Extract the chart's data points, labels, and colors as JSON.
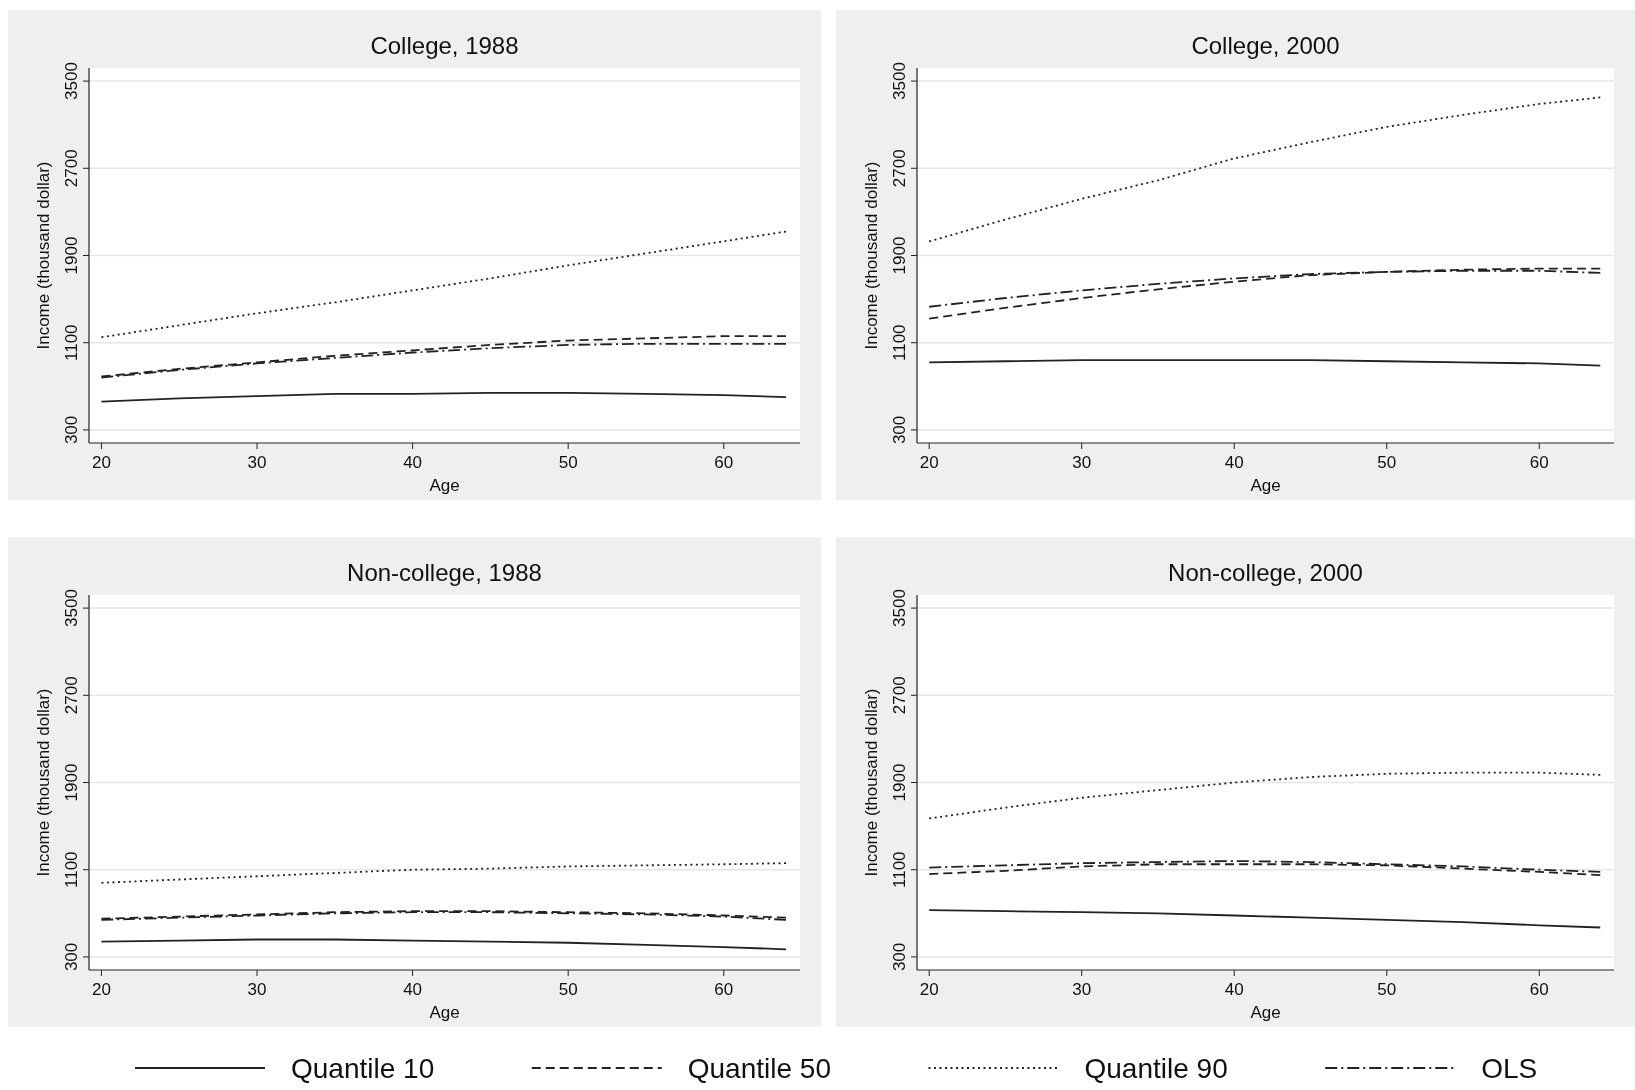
{
  "chart_data": [
    {
      "type": "line",
      "title": "College, 1988",
      "xlabel": "Age",
      "ylabel": "Income (thousand dollar)",
      "x": [
        20,
        25,
        30,
        35,
        40,
        45,
        50,
        55,
        60,
        64
      ],
      "xlim": [
        19.2,
        64.9
      ],
      "ylim": [
        180,
        3620
      ],
      "xticks": [
        20,
        30,
        40,
        50,
        60
      ],
      "yticks": [
        300,
        1100,
        1900,
        2700,
        3500
      ],
      "grid": "y",
      "legend": "bottom",
      "series": [
        {
          "name": "Quantile 10",
          "color": "#222222",
          "line_style": "solid",
          "values": [
            560,
            590,
            610,
            630,
            630,
            640,
            640,
            630,
            620,
            600
          ]
        },
        {
          "name": "Quantile 50",
          "color": "#222222",
          "line_style": "dashed",
          "values": [
            790,
            860,
            920,
            980,
            1030,
            1080,
            1120,
            1140,
            1160,
            1160
          ]
        },
        {
          "name": "Quantile 90",
          "color": "#222222",
          "line_style": "dotted",
          "values": [
            1150,
            1260,
            1370,
            1470,
            1580,
            1690,
            1810,
            1920,
            2030,
            2120
          ]
        },
        {
          "name": "OLS",
          "color": "#222222",
          "line_style": "dashdot",
          "values": [
            780,
            850,
            910,
            960,
            1010,
            1050,
            1080,
            1090,
            1090,
            1090
          ]
        }
      ]
    },
    {
      "type": "line",
      "title": "College, 2000",
      "xlabel": "Age",
      "ylabel": "Income (thousand dollar)",
      "x": [
        20,
        25,
        30,
        35,
        40,
        45,
        50,
        55,
        60,
        64
      ],
      "xlim": [
        19.2,
        64.9
      ],
      "ylim": [
        180,
        3620
      ],
      "xticks": [
        20,
        30,
        40,
        50,
        60
      ],
      "yticks": [
        300,
        1100,
        1900,
        2700,
        3500
      ],
      "grid": "y",
      "series": [
        {
          "color": "#222222",
          "line_style": "solid",
          "values": [
            920,
            930,
            940,
            940,
            940,
            940,
            930,
            920,
            910,
            890
          ]
        },
        {
          "color": "#222222",
          "line_style": "dashed",
          "values": [
            1320,
            1420,
            1510,
            1590,
            1660,
            1720,
            1750,
            1770,
            1780,
            1780
          ]
        },
        {
          "color": "#222222",
          "line_style": "dotted",
          "values": [
            2030,
            2230,
            2420,
            2590,
            2790,
            2940,
            3080,
            3190,
            3290,
            3350
          ]
        },
        {
          "color": "#222222",
          "line_style": "dashdot",
          "values": [
            1430,
            1510,
            1580,
            1640,
            1690,
            1730,
            1750,
            1760,
            1760,
            1740
          ]
        }
      ]
    },
    {
      "type": "line",
      "title": "Non-college, 1988",
      "xlabel": "Age",
      "ylabel": "Income (thousand dollar)",
      "x": [
        20,
        25,
        30,
        35,
        40,
        45,
        50,
        55,
        60,
        64
      ],
      "xlim": [
        19.2,
        64.9
      ],
      "ylim": [
        180,
        3620
      ],
      "xticks": [
        20,
        30,
        40,
        50,
        60
      ],
      "yticks": [
        300,
        1100,
        1900,
        2700,
        3500
      ],
      "grid": "y",
      "series": [
        {
          "color": "#222222",
          "line_style": "solid",
          "values": [
            440,
            450,
            460,
            460,
            450,
            440,
            430,
            410,
            390,
            370
          ]
        },
        {
          "color": "#222222",
          "line_style": "dashed",
          "values": [
            650,
            670,
            690,
            710,
            720,
            720,
            710,
            700,
            680,
            660
          ]
        },
        {
          "color": "#222222",
          "line_style": "dotted",
          "values": [
            980,
            1010,
            1040,
            1070,
            1100,
            1110,
            1130,
            1140,
            1150,
            1160
          ]
        },
        {
          "color": "#222222",
          "line_style": "dashdot",
          "values": [
            640,
            660,
            680,
            700,
            710,
            710,
            700,
            690,
            670,
            640
          ]
        }
      ]
    },
    {
      "type": "line",
      "title": "Non-college, 2000",
      "xlabel": "Age",
      "ylabel": "Income (thousand dollar)",
      "x": [
        20,
        25,
        30,
        35,
        40,
        45,
        50,
        55,
        60,
        64
      ],
      "xlim": [
        19.2,
        64.9
      ],
      "ylim": [
        180,
        3620
      ],
      "xticks": [
        20,
        30,
        40,
        50,
        60
      ],
      "yticks": [
        300,
        1100,
        1900,
        2700,
        3500
      ],
      "grid": "y",
      "series": [
        {
          "color": "#222222",
          "line_style": "solid",
          "values": [
            730,
            720,
            710,
            700,
            680,
            660,
            640,
            620,
            590,
            570
          ]
        },
        {
          "color": "#222222",
          "line_style": "dashed",
          "values": [
            1060,
            1090,
            1130,
            1150,
            1150,
            1150,
            1140,
            1110,
            1080,
            1050
          ]
        },
        {
          "color": "#222222",
          "line_style": "dotted",
          "values": [
            1570,
            1670,
            1760,
            1830,
            1900,
            1950,
            1980,
            1990,
            1990,
            1970
          ]
        },
        {
          "color": "#222222",
          "line_style": "dashdot",
          "values": [
            1120,
            1140,
            1160,
            1170,
            1180,
            1170,
            1150,
            1130,
            1100,
            1080
          ]
        }
      ]
    }
  ]
}
